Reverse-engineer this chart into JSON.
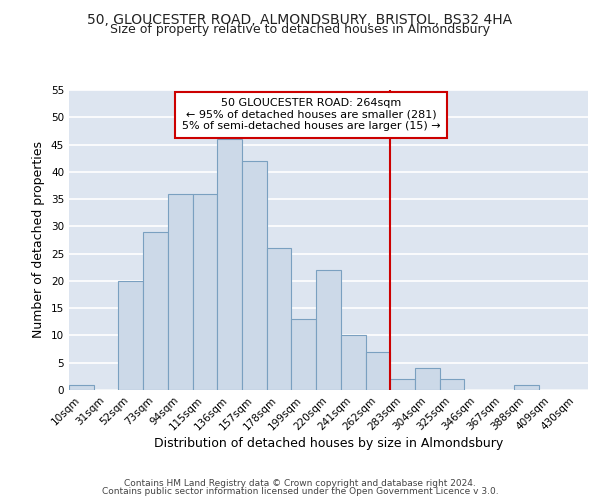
{
  "title1": "50, GLOUCESTER ROAD, ALMONDSBURY, BRISTOL, BS32 4HA",
  "title2": "Size of property relative to detached houses in Almondsbury",
  "xlabel": "Distribution of detached houses by size in Almondsbury",
  "ylabel": "Number of detached properties",
  "categories": [
    "10sqm",
    "31sqm",
    "52sqm",
    "73sqm",
    "94sqm",
    "115sqm",
    "136sqm",
    "157sqm",
    "178sqm",
    "199sqm",
    "220sqm",
    "241sqm",
    "262sqm",
    "283sqm",
    "304sqm",
    "325sqm",
    "346sqm",
    "367sqm",
    "388sqm",
    "409sqm",
    "430sqm"
  ],
  "values": [
    1,
    0,
    20,
    29,
    36,
    36,
    46,
    42,
    26,
    13,
    22,
    10,
    7,
    2,
    4,
    2,
    0,
    0,
    1,
    0,
    0
  ],
  "bar_color": "#ccd9e8",
  "bar_edge_color": "#7aa0c0",
  "background_color": "#dde5f0",
  "grid_color": "#ffffff",
  "vline_x": 12.5,
  "vline_color": "#cc0000",
  "annotation_text": "50 GLOUCESTER ROAD: 264sqm\n← 95% of detached houses are smaller (281)\n5% of semi-detached houses are larger (15) →",
  "annotation_box_color": "#ffffff",
  "annotation_box_edge_color": "#cc0000",
  "ylim": [
    0,
    55
  ],
  "yticks": [
    0,
    5,
    10,
    15,
    20,
    25,
    30,
    35,
    40,
    45,
    50,
    55
  ],
  "footer_line1": "Contains HM Land Registry data © Crown copyright and database right 2024.",
  "footer_line2": "Contains public sector information licensed under the Open Government Licence v 3.0.",
  "title_fontsize": 10,
  "subtitle_fontsize": 9,
  "label_fontsize": 9,
  "tick_fontsize": 7.5,
  "annotation_fontsize": 8,
  "footer_fontsize": 6.5
}
